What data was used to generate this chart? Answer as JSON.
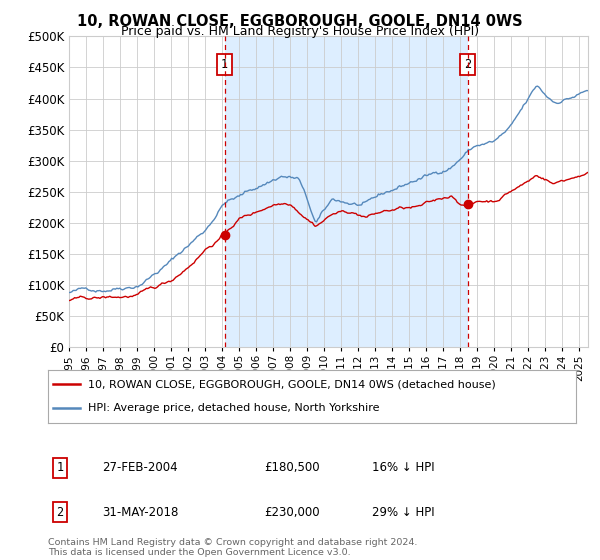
{
  "title": "10, ROWAN CLOSE, EGGBOROUGH, GOOLE, DN14 0WS",
  "subtitle": "Price paid vs. HM Land Registry's House Price Index (HPI)",
  "ylim": [
    0,
    500000
  ],
  "yticks": [
    0,
    50000,
    100000,
    150000,
    200000,
    250000,
    300000,
    350000,
    400000,
    450000,
    500000
  ],
  "xlim_start": 1995.0,
  "xlim_end": 2025.5,
  "legend_label_red": "10, ROWAN CLOSE, EGGBOROUGH, GOOLE, DN14 0WS (detached house)",
  "legend_label_blue": "HPI: Average price, detached house, North Yorkshire",
  "point1_label": "1",
  "point1_date": "27-FEB-2004",
  "point1_price": "£180,500",
  "point1_hpi": "16% ↓ HPI",
  "point2_label": "2",
  "point2_date": "31-MAY-2018",
  "point2_price": "£230,000",
  "point2_hpi": "29% ↓ HPI",
  "footnote": "Contains HM Land Registry data © Crown copyright and database right 2024.\nThis data is licensed under the Open Government Licence v3.0.",
  "color_red": "#cc0000",
  "color_blue": "#5588bb",
  "color_shade": "#ddeeff",
  "color_grid": "#cccccc",
  "color_bg": "#ffffff",
  "point1_x": 2004.15,
  "point1_y": 180500,
  "point2_x": 2018.42,
  "point2_y": 230000,
  "vline1_x": 2004.15,
  "vline2_x": 2018.42
}
